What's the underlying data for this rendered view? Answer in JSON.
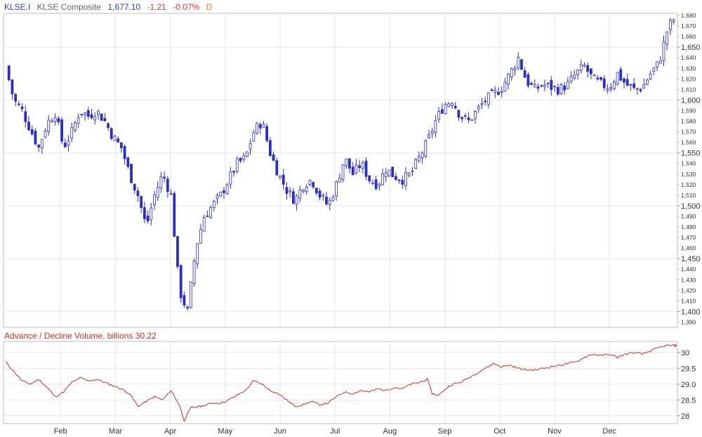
{
  "header": {
    "symbol": "KLSE.I",
    "name": "KLSE Composite",
    "last": "1,677.10",
    "change": "-1.21",
    "change_pct": "-0.07%",
    "flag": "D"
  },
  "lower_panel": {
    "title": "Advance / Decline Volume, billions 30.22"
  },
  "colors": {
    "candle": "#2a2fbf",
    "adline": "#c0302b",
    "grid": "#e6e6e6",
    "border": "#bdbdbd"
  },
  "chart_data": [
    {
      "type": "candlestick",
      "title": "KLSE Composite",
      "ylim": [
        1385,
        1682
      ],
      "y_ticks_major": [
        "1,400",
        "1,450",
        "1,500",
        "1,550",
        "1,600",
        "1,650"
      ],
      "y_ticks_minor": [
        "1,390",
        "1,410",
        "1,420",
        "1,430",
        "1,440",
        "1,460",
        "1,470",
        "1,480",
        "1,490",
        "1,510",
        "1,520",
        "1,530",
        "1,540",
        "1,560",
        "1,570",
        "1,580",
        "1,590",
        "1,610",
        "1,620",
        "1,630",
        "1,640",
        "1,660",
        "1,670",
        "1,680"
      ],
      "x_months": [
        "Feb",
        "Mar",
        "Apr",
        "May",
        "Jun",
        "Jul",
        "Aug",
        "Sep",
        "Oct",
        "Nov",
        "Dec"
      ],
      "close_points": [
        [
          0,
          1632
        ],
        [
          5,
          1600
        ],
        [
          10,
          1590
        ],
        [
          15,
          1572
        ],
        [
          20,
          1555
        ],
        [
          25,
          1578
        ],
        [
          30,
          1588
        ],
        [
          35,
          1555
        ],
        [
          40,
          1570
        ],
        [
          45,
          1590
        ],
        [
          50,
          1585
        ],
        [
          55,
          1590
        ],
        [
          60,
          1580
        ],
        [
          65,
          1565
        ],
        [
          70,
          1555
        ],
        [
          75,
          1530
        ],
        [
          80,
          1510
        ],
        [
          85,
          1480
        ],
        [
          90,
          1510
        ],
        [
          95,
          1530
        ],
        [
          100,
          1510
        ],
        [
          105,
          1420
        ],
        [
          110,
          1400
        ],
        [
          115,
          1460
        ],
        [
          120,
          1490
        ],
        [
          125,
          1500
        ],
        [
          130,
          1510
        ],
        [
          135,
          1525
        ],
        [
          140,
          1540
        ],
        [
          145,
          1545
        ],
        [
          150,
          1570
        ],
        [
          155,
          1580
        ],
        [
          160,
          1550
        ],
        [
          165,
          1530
        ],
        [
          170,
          1515
        ],
        [
          175,
          1505
        ],
        [
          180,
          1520
        ],
        [
          185,
          1525
        ],
        [
          190,
          1510
        ],
        [
          195,
          1500
        ],
        [
          200,
          1520
        ],
        [
          205,
          1545
        ],
        [
          210,
          1530
        ],
        [
          215,
          1540
        ],
        [
          220,
          1525
        ],
        [
          225,
          1520
        ],
        [
          230,
          1535
        ],
        [
          235,
          1528
        ],
        [
          240,
          1525
        ],
        [
          245,
          1530
        ],
        [
          250,
          1545
        ],
        [
          255,
          1560
        ],
        [
          260,
          1580
        ],
        [
          265,
          1595
        ],
        [
          270,
          1600
        ],
        [
          275,
          1585
        ],
        [
          280,
          1580
        ],
        [
          285,
          1590
        ],
        [
          290,
          1600
        ],
        [
          295,
          1605
        ],
        [
          300,
          1612
        ],
        [
          305,
          1625
        ],
        [
          310,
          1640
        ],
        [
          315,
          1618
        ],
        [
          320,
          1610
        ],
        [
          325,
          1615
        ],
        [
          330,
          1612
        ],
        [
          335,
          1610
        ],
        [
          340,
          1615
        ],
        [
          345,
          1625
        ],
        [
          350,
          1632
        ],
        [
          355,
          1620
        ],
        [
          360,
          1615
        ],
        [
          365,
          1612
        ],
        [
          370,
          1625
        ],
        [
          375,
          1615
        ],
        [
          380,
          1610
        ],
        [
          385,
          1612
        ],
        [
          390,
          1625
        ],
        [
          395,
          1635
        ],
        [
          400,
          1665
        ],
        [
          403,
          1675
        ],
        [
          405,
          1677.1
        ]
      ]
    },
    {
      "type": "line",
      "title": "Advance / Decline Volume, billions 30.22",
      "ylim": [
        27.75,
        30.35
      ],
      "y_ticks": [
        "28",
        "28.5",
        "29.0",
        "29.5",
        "30"
      ],
      "points": [
        [
          0,
          29.7
        ],
        [
          5,
          29.4
        ],
        [
          10,
          29.1
        ],
        [
          15,
          29.0
        ],
        [
          20,
          29.15
        ],
        [
          25,
          28.9
        ],
        [
          30,
          28.6
        ],
        [
          35,
          28.75
        ],
        [
          40,
          29.05
        ],
        [
          45,
          29.2
        ],
        [
          50,
          29.1
        ],
        [
          55,
          29.15
        ],
        [
          60,
          29.05
        ],
        [
          65,
          28.95
        ],
        [
          70,
          28.85
        ],
        [
          75,
          28.7
        ],
        [
          80,
          28.3
        ],
        [
          85,
          28.45
        ],
        [
          90,
          28.6
        ],
        [
          95,
          28.5
        ],
        [
          100,
          28.8
        ],
        [
          105,
          28.35
        ],
        [
          108,
          27.85
        ],
        [
          112,
          28.25
        ],
        [
          118,
          28.3
        ],
        [
          125,
          28.4
        ],
        [
          130,
          28.4
        ],
        [
          135,
          28.5
        ],
        [
          140,
          28.65
        ],
        [
          145,
          28.8
        ],
        [
          150,
          29.1
        ],
        [
          155,
          29.0
        ],
        [
          160,
          28.8
        ],
        [
          165,
          28.7
        ],
        [
          170,
          28.5
        ],
        [
          175,
          28.3
        ],
        [
          180,
          28.35
        ],
        [
          185,
          28.45
        ],
        [
          190,
          28.35
        ],
        [
          195,
          28.4
        ],
        [
          200,
          28.6
        ],
        [
          205,
          28.75
        ],
        [
          210,
          28.7
        ],
        [
          215,
          28.8
        ],
        [
          220,
          28.75
        ],
        [
          225,
          28.85
        ],
        [
          230,
          28.8
        ],
        [
          235,
          28.9
        ],
        [
          240,
          28.85
        ],
        [
          245,
          29.0
        ],
        [
          250,
          29.05
        ],
        [
          255,
          29.15
        ],
        [
          258,
          28.7
        ],
        [
          262,
          28.65
        ],
        [
          266,
          28.85
        ],
        [
          270,
          29.0
        ],
        [
          275,
          29.05
        ],
        [
          280,
          29.2
        ],
        [
          285,
          29.35
        ],
        [
          290,
          29.5
        ],
        [
          295,
          29.65
        ],
        [
          300,
          29.55
        ],
        [
          305,
          29.6
        ],
        [
          310,
          29.5
        ],
        [
          315,
          29.45
        ],
        [
          320,
          29.45
        ],
        [
          325,
          29.5
        ],
        [
          330,
          29.55
        ],
        [
          335,
          29.6
        ],
        [
          340,
          29.65
        ],
        [
          345,
          29.7
        ],
        [
          350,
          29.85
        ],
        [
          355,
          29.95
        ],
        [
          360,
          29.9
        ],
        [
          365,
          29.95
        ],
        [
          370,
          29.85
        ],
        [
          375,
          29.95
        ],
        [
          380,
          30.0
        ],
        [
          385,
          29.95
        ],
        [
          390,
          30.05
        ],
        [
          395,
          30.15
        ],
        [
          400,
          30.22
        ],
        [
          405,
          30.22
        ]
      ]
    }
  ]
}
